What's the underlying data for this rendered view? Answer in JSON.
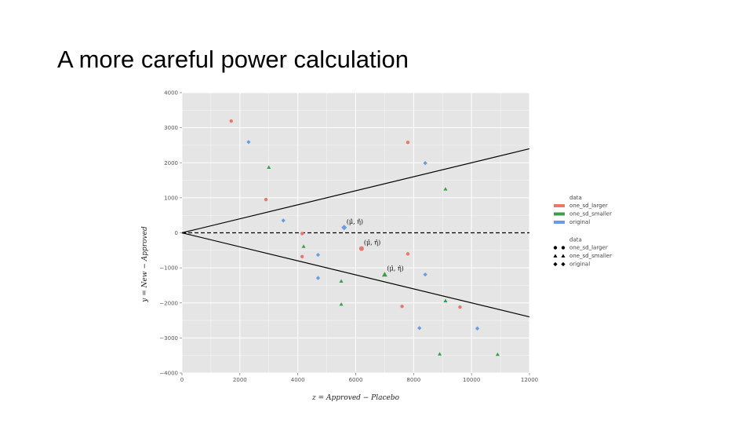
{
  "slide": {
    "title": "A more careful power calculation"
  },
  "colors": {
    "panel": "#e5e5e5",
    "grid": "#ffffff",
    "one_sd_larger": "#e8776c",
    "one_sd_smaller": "#3a9f4d",
    "original": "#6b9be0"
  },
  "chart_data": {
    "type": "scatter",
    "xlabel": "z = Approved − Placebo",
    "ylabel": "y = New − Approved",
    "xlim": [
      0,
      12000
    ],
    "ylim": [
      -4000,
      4000
    ],
    "x_ticks": [
      "0",
      "2000",
      "4000",
      "6000",
      "8000",
      "10000",
      "12000"
    ],
    "y_ticks": [
      "4000",
      "3000",
      "2000",
      "1000",
      "0",
      "-1000",
      "-2000",
      "-3000",
      "-4000"
    ],
    "grid": true,
    "series": [
      {
        "name": "one_sd_larger",
        "marker": "circle",
        "points": [
          [
            1700,
            3190
          ],
          [
            2900,
            950
          ],
          [
            4150,
            -20
          ],
          [
            4150,
            -680
          ],
          [
            7600,
            -2100
          ],
          [
            7800,
            2580
          ],
          [
            7800,
            -600
          ],
          [
            9600,
            -2120
          ]
        ]
      },
      {
        "name": "one_sd_smaller",
        "marker": "triangle",
        "points": [
          [
            3000,
            1870
          ],
          [
            4200,
            -390
          ],
          [
            5500,
            -1380
          ],
          [
            5500,
            -2040
          ],
          [
            8900,
            -3460
          ],
          [
            9100,
            1250
          ],
          [
            9100,
            -1940
          ],
          [
            10900,
            -3470
          ]
        ]
      },
      {
        "name": "original",
        "marker": "diamond",
        "points": [
          [
            2300,
            2590
          ],
          [
            3500,
            350
          ],
          [
            4700,
            -630
          ],
          [
            4700,
            -1290
          ],
          [
            8200,
            -2720
          ],
          [
            8400,
            1990
          ],
          [
            8400,
            -1190
          ],
          [
            10200,
            -2730
          ]
        ]
      }
    ],
    "highlighted_points": [
      {
        "series": "original",
        "x": 5600,
        "y": 150,
        "label": "(μ̂, η̂)"
      },
      {
        "series": "one_sd_larger",
        "x": 6200,
        "y": -450,
        "label": "(μ̂, η̂)"
      },
      {
        "series": "one_sd_smaller",
        "x": 7000,
        "y": -1190,
        "label": "(μ̂, η̂)"
      }
    ],
    "reference_lines": [
      {
        "style": "solid",
        "from": [
          0,
          0
        ],
        "to": [
          12000,
          2400
        ]
      },
      {
        "style": "solid",
        "from": [
          0,
          0
        ],
        "to": [
          12000,
          -2400
        ]
      },
      {
        "style": "dashed",
        "from": [
          0,
          0
        ],
        "to": [
          12000,
          0
        ]
      }
    ],
    "legends": [
      {
        "title": "data",
        "kind": "color",
        "entries": [
          "one_sd_larger",
          "one_sd_smaller",
          "original"
        ]
      },
      {
        "title": "data",
        "kind": "shape",
        "entries": [
          "one_sd_larger",
          "one_sd_smaller",
          "original"
        ]
      }
    ],
    "legend_position": "right"
  }
}
